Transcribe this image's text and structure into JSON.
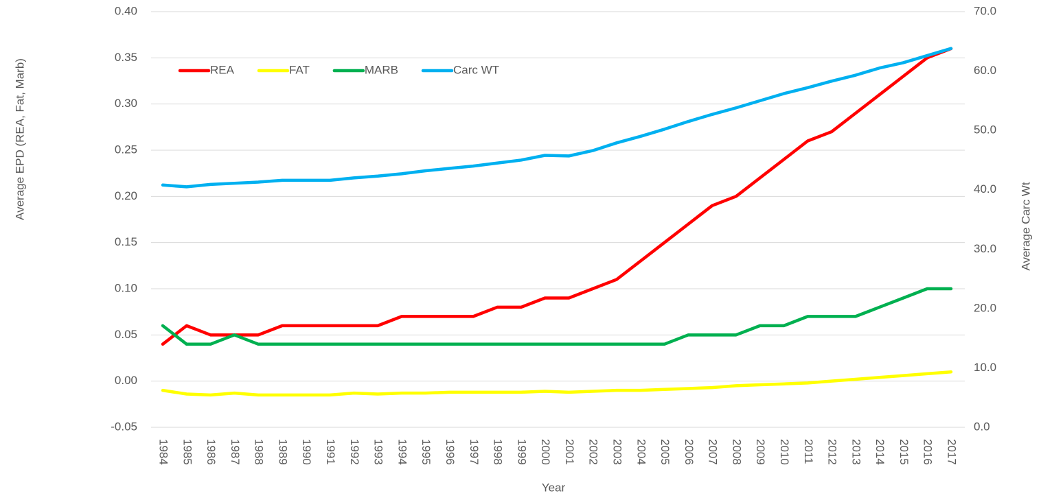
{
  "chart_data": {
    "type": "line",
    "xlabel": "Year",
    "ylabel": "Average EPD (REA, Fat, Marb)",
    "y2label": "Average Carc Wt",
    "categories": [
      "1984",
      "1985",
      "1986",
      "1987",
      "1988",
      "1989",
      "1990",
      "1991",
      "1992",
      "1993",
      "1994",
      "1995",
      "1996",
      "1997",
      "1998",
      "1999",
      "2000",
      "2001",
      "2002",
      "2003",
      "2004",
      "2005",
      "2006",
      "2007",
      "2008",
      "2009",
      "2010",
      "2011",
      "2012",
      "2013",
      "2014",
      "2015",
      "2016",
      "2017"
    ],
    "series": [
      {
        "name": "REA",
        "color": "#ff0000",
        "values": [
          0.04,
          0.06,
          0.05,
          0.05,
          0.05,
          0.06,
          0.06,
          0.06,
          0.06,
          0.06,
          0.07,
          0.07,
          0.07,
          0.07,
          0.08,
          0.08,
          0.09,
          0.09,
          0.1,
          0.11,
          0.13,
          0.15,
          0.17,
          0.19,
          0.2,
          0.22,
          0.24,
          0.26,
          0.27,
          0.29,
          0.31,
          0.33,
          0.35,
          0.36
        ]
      },
      {
        "name": "FAT",
        "color": "#ffff00",
        "values": [
          -0.01,
          -0.014,
          -0.015,
          -0.013,
          -0.015,
          -0.015,
          -0.015,
          -0.015,
          -0.013,
          -0.014,
          -0.013,
          -0.013,
          -0.012,
          -0.012,
          -0.012,
          -0.012,
          -0.011,
          -0.012,
          -0.011,
          -0.01,
          -0.01,
          -0.009,
          -0.008,
          -0.007,
          -0.005,
          -0.004,
          -0.003,
          -0.002,
          0.0,
          0.002,
          0.004,
          0.006,
          0.008,
          0.01
        ]
      },
      {
        "name": "MARB",
        "color": "#00b050",
        "values": [
          0.06,
          0.04,
          0.04,
          0.05,
          0.04,
          0.04,
          0.04,
          0.04,
          0.04,
          0.04,
          0.04,
          0.04,
          0.04,
          0.04,
          0.04,
          0.04,
          0.04,
          0.04,
          0.04,
          0.04,
          0.04,
          0.04,
          0.05,
          0.05,
          0.05,
          0.06,
          0.06,
          0.07,
          0.07,
          0.07,
          0.08,
          0.09,
          0.1,
          0.1
        ]
      },
      {
        "name": "Carc WT",
        "color": "#00b0f0",
        "axis": "y2",
        "values": [
          40.8,
          40.5,
          40.9,
          41.1,
          41.3,
          41.6,
          41.6,
          41.6,
          42.0,
          42.3,
          42.7,
          43.2,
          43.6,
          44.0,
          44.5,
          45.0,
          45.8,
          45.7,
          46.6,
          47.9,
          49.0,
          50.2,
          51.5,
          52.7,
          53.8,
          55.0,
          56.2,
          57.2,
          58.3,
          59.3,
          60.5,
          61.4,
          62.6,
          63.8
        ]
      }
    ],
    "ylim": [
      -0.05,
      0.4
    ],
    "yticks": [
      -0.05,
      {
        "value": 0,
        "label": "0.00"
      },
      0.05,
      {
        "value": 0.1,
        "label": "0.10"
      },
      0.15,
      {
        "value": 0.2,
        "label": "0.20"
      },
      0.25,
      {
        "value": 0.3,
        "label": "0.30"
      },
      0.35,
      {
        "value": 0.4,
        "label": "0.40"
      }
    ],
    "y2lim": [
      0,
      70
    ],
    "y2ticks": [
      {
        "value": 0,
        "label": "0.0"
      },
      {
        "value": 10,
        "label": "10.0"
      },
      {
        "value": 20,
        "label": "20.0"
      },
      {
        "value": 30,
        "label": "30.0"
      },
      {
        "value": 40,
        "label": "40.0"
      },
      {
        "value": 50,
        "label": "50.0"
      },
      {
        "value": 60,
        "label": "60.0"
      },
      {
        "value": 70,
        "label": "70.0"
      }
    ],
    "grid": true,
    "legend": "upper left"
  }
}
